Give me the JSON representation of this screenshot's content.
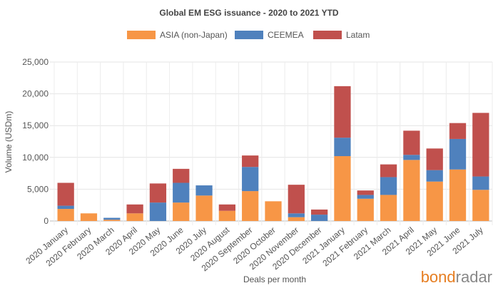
{
  "chart_data": {
    "type": "bar",
    "stacked": true,
    "title": "Global EM ESG issuance - 2020 to 2021 YTD",
    "xlabel": "Deals per month",
    "ylabel": "Volume (USDm)",
    "ylim": [
      0,
      25000
    ],
    "yticks": [
      "0",
      "5,000",
      "10,000",
      "15,000",
      "20,000",
      "25,000"
    ],
    "ytick_values": [
      0,
      5000,
      10000,
      15000,
      20000,
      25000
    ],
    "grid": true,
    "legend_position": "top-center",
    "categories": [
      "2020 January",
      "2020 February",
      "2020 March",
      "2020 April",
      "2020 May",
      "2020 June",
      "2020 July",
      "2020 August",
      "2020 September",
      "2020 October",
      "2020 November",
      "2020 December",
      "2021 January",
      "2021 February",
      "2021 March",
      "2021 April",
      "2021 May",
      "2021 June",
      "2021 July"
    ],
    "series": [
      {
        "name": "ASIA (non-Japan)",
        "color": "#f79646",
        "values": [
          1900,
          1200,
          200,
          1200,
          0,
          2900,
          4000,
          1600,
          4700,
          3100,
          600,
          0,
          10200,
          3500,
          4100,
          9600,
          6200,
          8100,
          4900
        ]
      },
      {
        "name": "CEEMEA",
        "color": "#4f81bd",
        "values": [
          500,
          0,
          300,
          0,
          2900,
          3100,
          1600,
          0,
          3800,
          0,
          600,
          1000,
          2900,
          600,
          2800,
          800,
          1800,
          4800,
          2100
        ]
      },
      {
        "name": "Latam",
        "color": "#c0504d",
        "values": [
          3600,
          0,
          0,
          1400,
          3000,
          2200,
          0,
          1000,
          1800,
          0,
          4500,
          800,
          8100,
          700,
          2000,
          3800,
          3400,
          2500,
          10000
        ]
      }
    ]
  },
  "brand": {
    "part1": "bond",
    "part2": "radar",
    "color1": "#e67e22",
    "color2": "#888888"
  }
}
